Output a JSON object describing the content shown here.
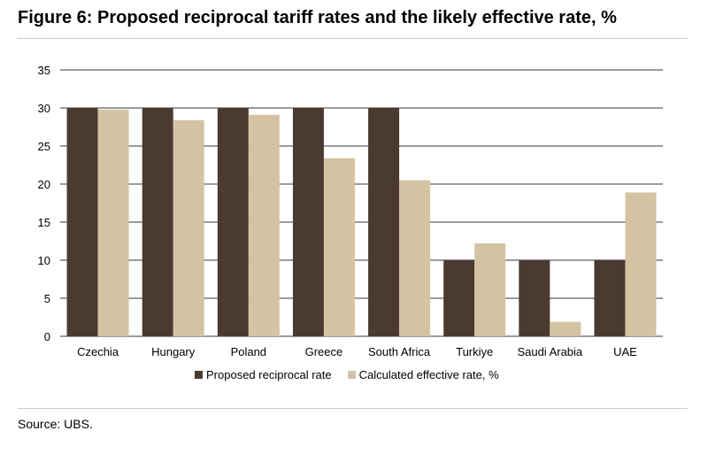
{
  "title": "Figure 6: Proposed reciprocal tariff rates and the likely effective rate, %",
  "source": "Source: UBS.",
  "colors": {
    "proposed": "#4a3a30",
    "effective": "#d4c3a3",
    "grid": "#3a3a3a"
  },
  "chart_data": {
    "type": "bar",
    "categories": [
      "Czechia",
      "Hungary",
      "Poland",
      "Greece",
      "South Africa",
      "Turkiye",
      "Saudi Arabia",
      "UAE"
    ],
    "series": [
      {
        "name": "Proposed reciprocal rate",
        "values": [
          30,
          30,
          30,
          30,
          30,
          10,
          10,
          10
        ]
      },
      {
        "name": "Calculated effective rate, %",
        "values": [
          29.8,
          28.4,
          29.1,
          23.4,
          20.5,
          12.2,
          1.9,
          18.9
        ]
      }
    ],
    "ylim": [
      0,
      35
    ],
    "yticks": [
      0,
      5,
      10,
      15,
      20,
      25,
      30,
      35
    ],
    "grid": true,
    "legend": "bottom"
  }
}
